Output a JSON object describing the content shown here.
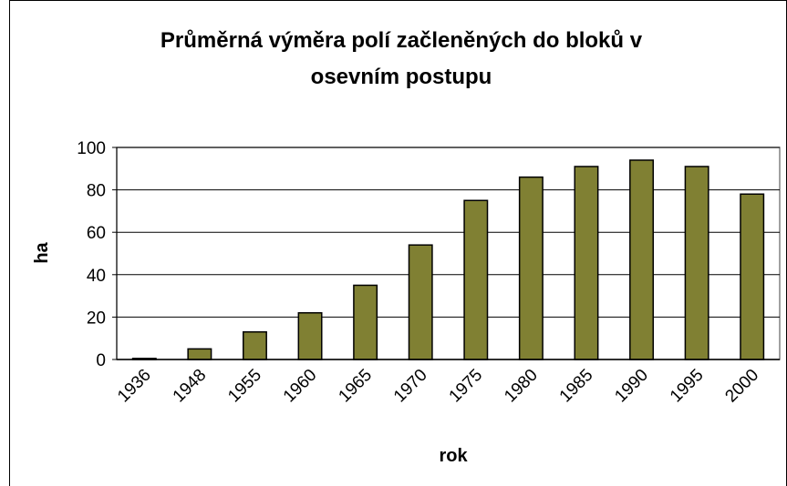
{
  "chart_data": {
    "type": "bar",
    "title": [
      "Průměrná výměra polí začleněných do bloků v",
      "osevním postupu"
    ],
    "x_label": "rok",
    "y_label": "ha",
    "categories": [
      "1936",
      "1948",
      "1955",
      "1960",
      "1965",
      "1970",
      "1975",
      "1980",
      "1985",
      "1990",
      "1995",
      "2000"
    ],
    "values": [
      0.5,
      5,
      13,
      22,
      35,
      54,
      75,
      86,
      91,
      94,
      91,
      78
    ],
    "color": "#808033",
    "ylim": [
      0,
      100
    ],
    "yticks": [
      0,
      20,
      40,
      60,
      80,
      100
    ],
    "grid": true
  }
}
